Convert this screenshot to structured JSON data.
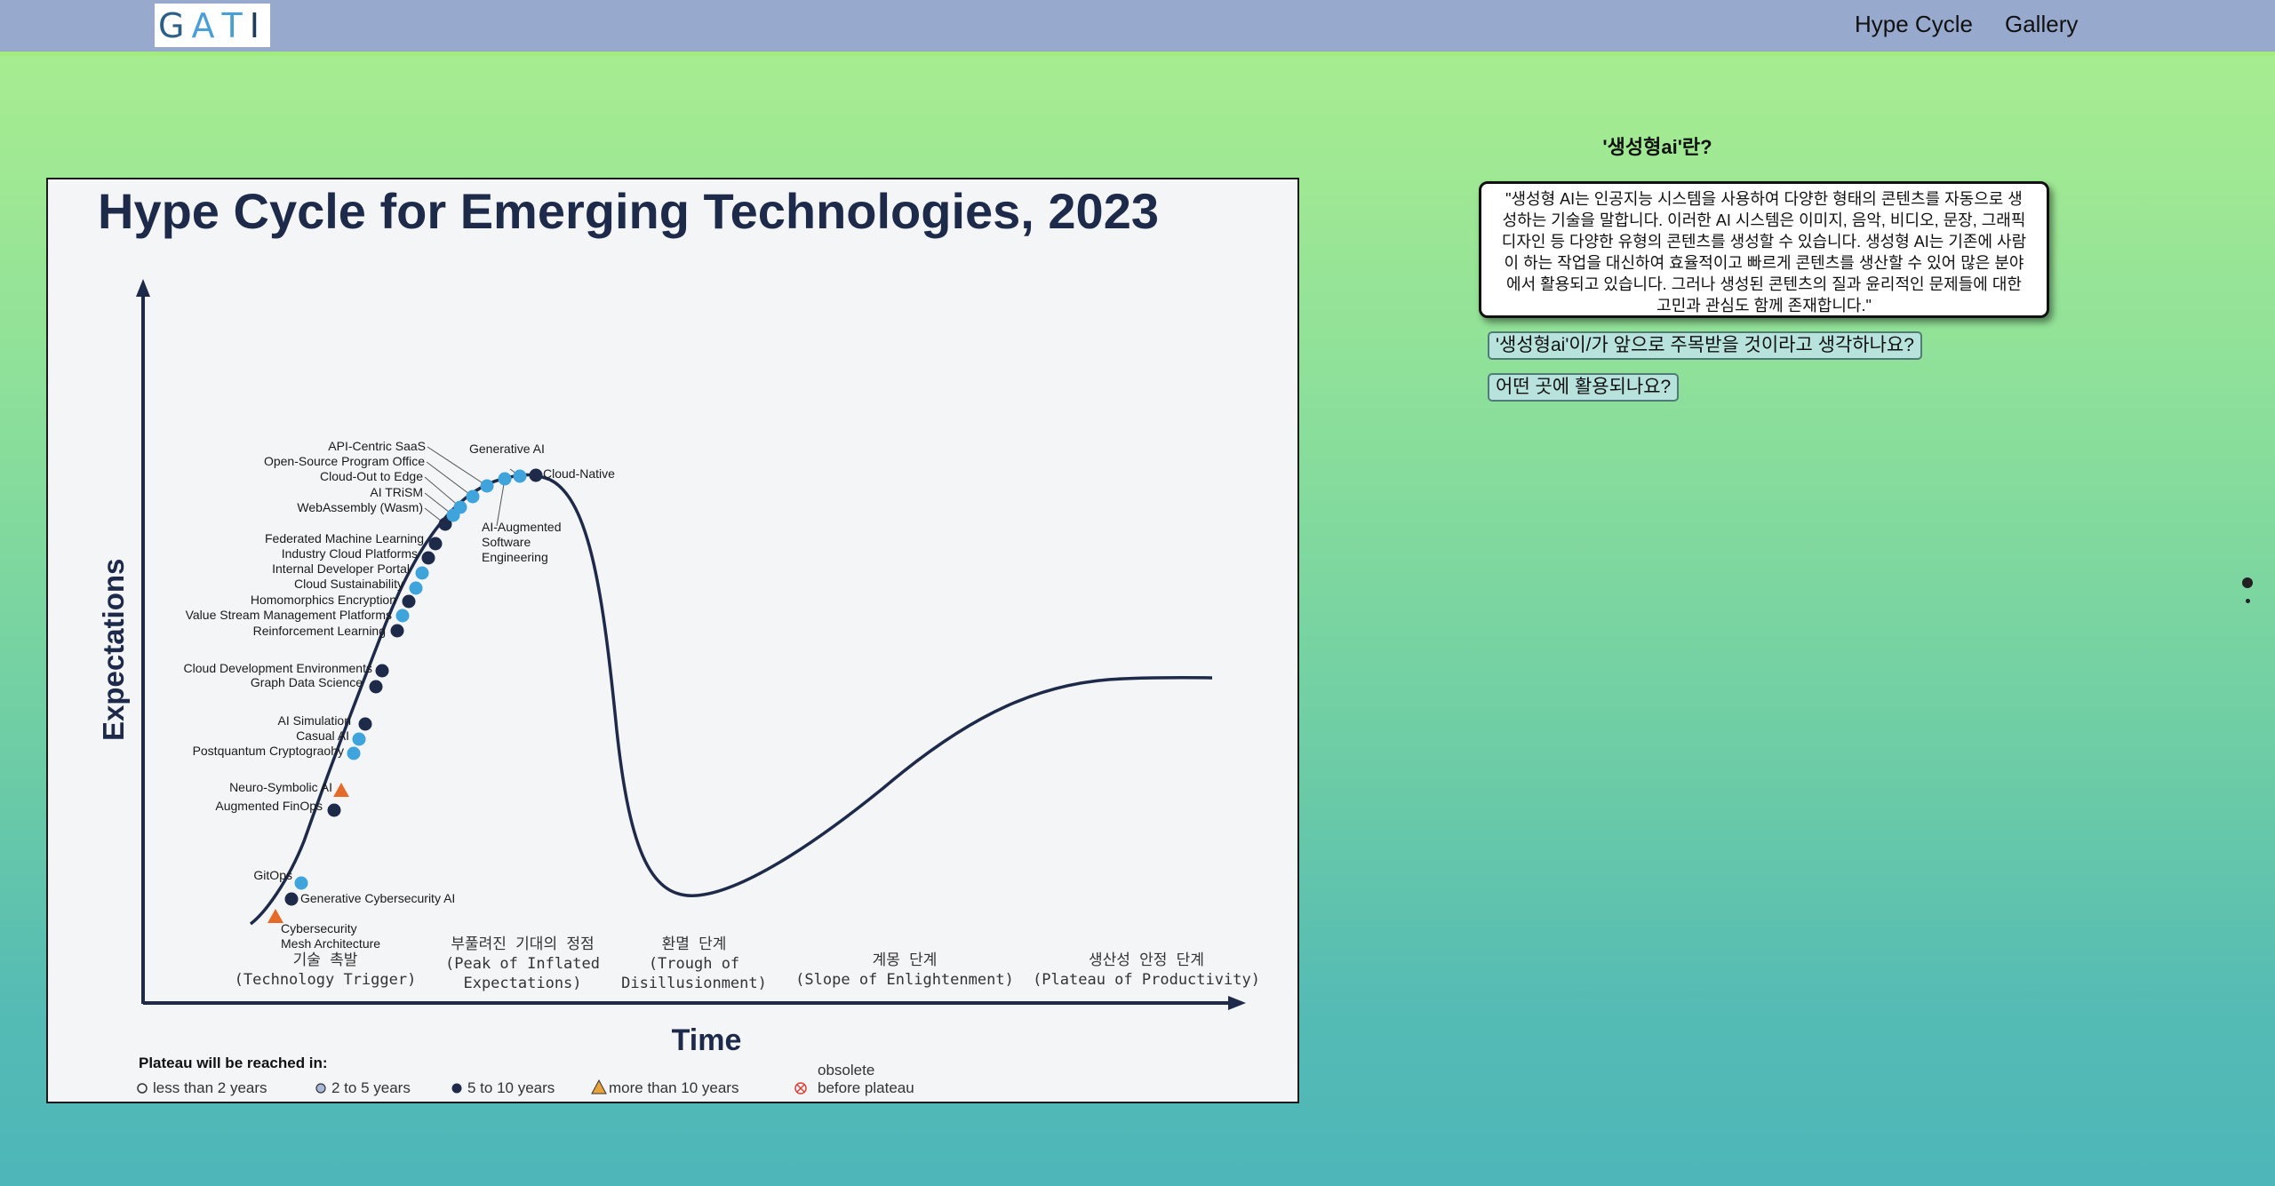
{
  "nav": {
    "logo_letters": [
      "G",
      "A",
      "T",
      "I"
    ],
    "logo_colors": [
      "#2d5f86",
      "#4a9ed6",
      "#4a9ed6",
      "#1f3c5a"
    ],
    "links": [
      "Hype Cycle",
      "Gallery"
    ]
  },
  "chart": {
    "title": "Hype Cycle for Emerging Technologies, 2023",
    "y_axis": "Expectations",
    "x_axis": "Time",
    "phases": [
      [
        "기술 촉발",
        "(Technology Trigger)"
      ],
      [
        "부풀려진 기대의 정점",
        "(Peak of Inflated",
        "Expectations)"
      ],
      [
        "환멸 단계",
        "(Trough of",
        "Disillusionment)"
      ],
      [
        "계몽 단계",
        "(Slope of Enlightenment)"
      ],
      [
        "생산성 안정 단계",
        "(Plateau of Productivity)"
      ]
    ],
    "technologies": [
      {
        "label": "Cybersecurity Mesh Architecture",
        "lines": [
          "Cybersecurity",
          "Mesh Architecture"
        ],
        "plateau": "more than 10 years"
      },
      {
        "label": "Generative Cybersecurity AI",
        "plateau": "5 to 10 years"
      },
      {
        "label": "GitOps",
        "plateau": "2 to 5 years"
      },
      {
        "label": "Augmented FinOps",
        "plateau": "5 to 10 years"
      },
      {
        "label": "Neuro-Symbolic AI",
        "plateau": "more than 10 years"
      },
      {
        "label": "Postquantum Cryptography",
        "display": "Postquantum Cryptograohy",
        "plateau": "2 to 5 years"
      },
      {
        "label": "Casual AI",
        "plateau": "2 to 5 years"
      },
      {
        "label": "AI Simulation",
        "plateau": "5 to 10 years"
      },
      {
        "label": "Graph Data Science",
        "plateau": "5 to 10 years"
      },
      {
        "label": "Cloud Development Environments",
        "plateau": "5 to 10 years"
      },
      {
        "label": "Reinforcement Learning",
        "plateau": "5 to 10 years"
      },
      {
        "label": "Value Stream Management Platforms",
        "plateau": "2 to 5 years"
      },
      {
        "label": "Homomorphics Encryption",
        "display": "Homomorphics Encryption",
        "plateau": "5 to 10 years"
      },
      {
        "label": "Cloud Sustainability",
        "plateau": "2 to 5 years"
      },
      {
        "label": "Internal Developer Portal",
        "plateau": "2 to 5 years"
      },
      {
        "label": "Industry Cloud Platforms",
        "plateau": "5 to 10 years"
      },
      {
        "label": "Federated Machine Learning",
        "plateau": "5 to 10 years"
      },
      {
        "label": "WebAssembly (Wasm)",
        "plateau": "5 to 10 years"
      },
      {
        "label": "AI TRiSM",
        "plateau": "2 to 5 years"
      },
      {
        "label": "Cloud-Out to Edge",
        "plateau": "2 to 5 years"
      },
      {
        "label": "Open-Source Program Office",
        "plateau": "2 to 5 years"
      },
      {
        "label": "API-Centric SaaS",
        "plateau": "2 to 5 years"
      },
      {
        "label": "AI-Augmented Software Engineering",
        "lines": [
          "AI-Augmented",
          "Software",
          "Engineering"
        ],
        "plateau": "2 to 5 years"
      },
      {
        "label": "Generative AI",
        "plateau": "2 to 5 years"
      },
      {
        "label": "Cloud-Native",
        "plateau": "5 to 10 years"
      }
    ],
    "legend": {
      "title": "Plateau will be reached in:",
      "items": [
        {
          "label": "less than 2 years",
          "marker": "open-circle"
        },
        {
          "label": "2 to 5 years",
          "marker": "light-circle"
        },
        {
          "label": "5 to 10 years",
          "marker": "dark-circle"
        },
        {
          "label": "more than 10 years",
          "marker": "triangle"
        },
        {
          "label": "obsolete|before plateau",
          "lines": [
            "obsolete",
            "before plateau"
          ],
          "marker": "x-circle"
        }
      ]
    },
    "colors": {
      "dark": "#1d2a4a",
      "light": "#3fa3dc",
      "triangle": "#e56b2b",
      "obsolete": "#d9403a",
      "curve": "#1d2a4a"
    }
  },
  "side_panel": {
    "title": "'생성형ai'란?",
    "answer_lines": [
      "\"생성형 AI는 인공지능 시스템을 사용하여 다양한 형태의 콘텐츠를 자동으로 생",
      "성하는 기술을 말합니다. 이러한 AI 시스템은 이미지, 음악, 비디오, 문장, 그래픽",
      "디자인 등 다양한 유형의 콘텐츠를 생성할 수 있습니다. 생성형 AI는 기존에 사람",
      "이 하는 작업을 대신하여 효율적이고 빠르게 콘텐츠를 생산할 수 있어 많은 분야",
      "에서 활용되고 있습니다. 그러나 생성된 콘텐츠의 질과 윤리적인 문제들에 대한",
      "고민과 관심도 함께 존재합니다.\""
    ],
    "questions": [
      "'생성형ai'이/가 앞으로 주목받을 것이라고 생각하나요?",
      "어떤 곳에 활용되나요?"
    ]
  }
}
